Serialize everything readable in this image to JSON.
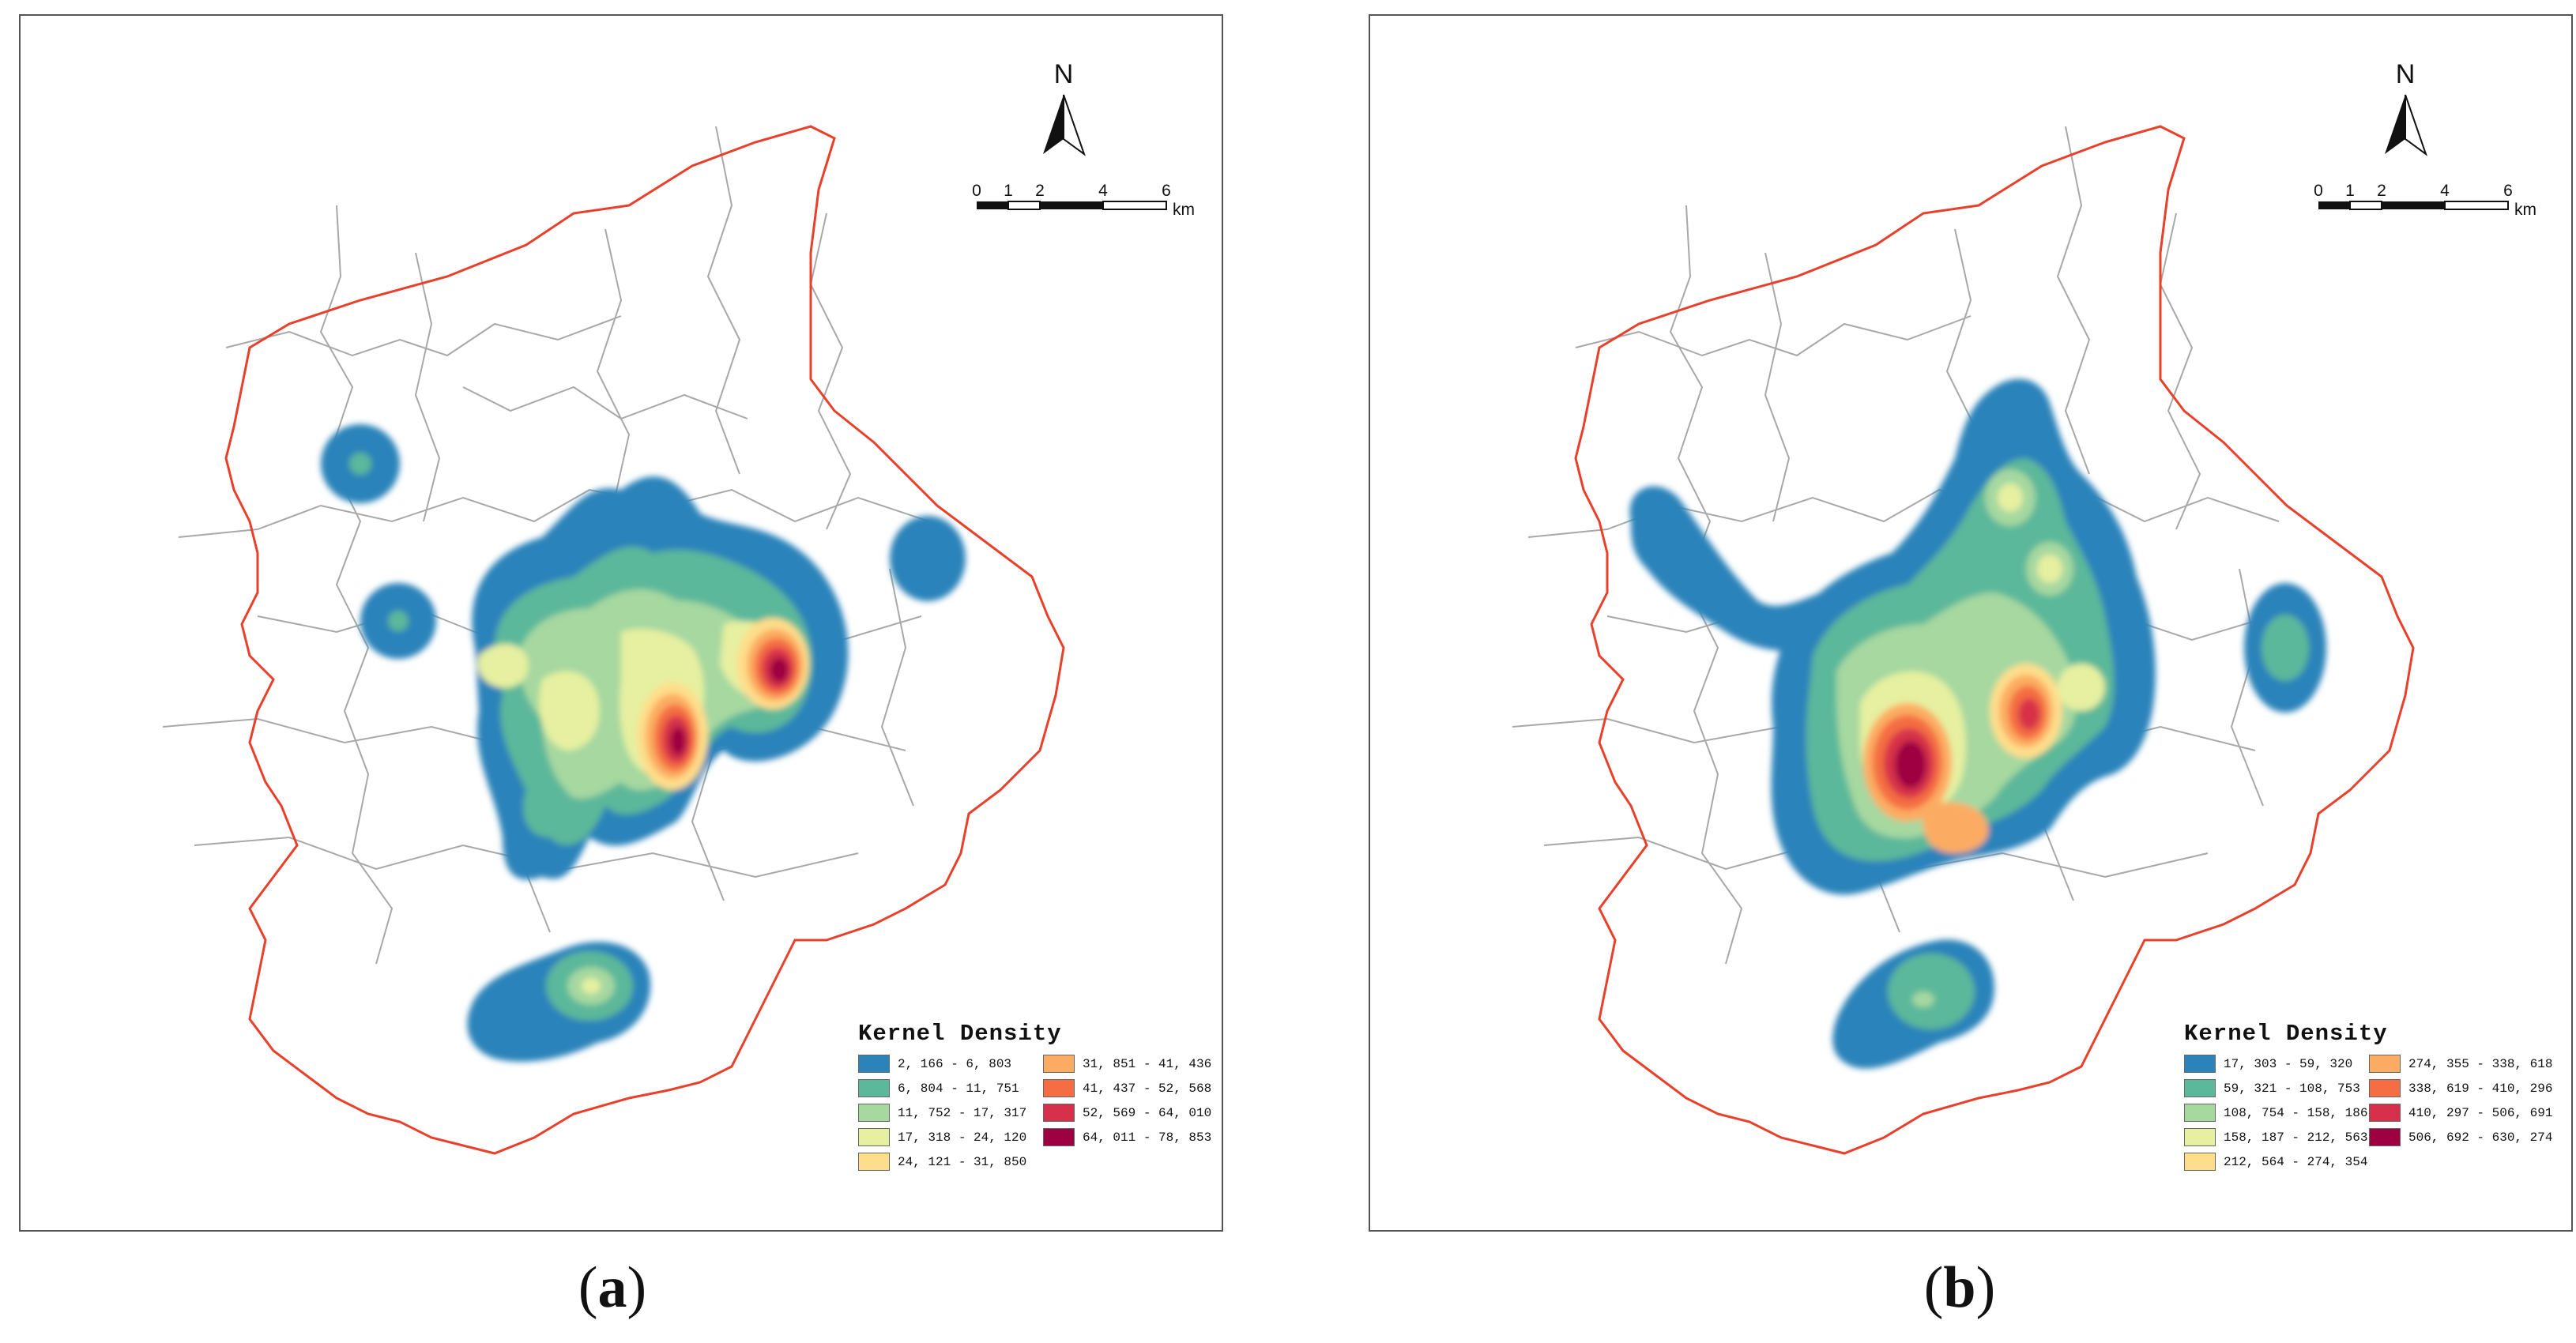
{
  "panels": [
    {
      "id": "a",
      "caption": "a",
      "north_label": "N",
      "scale_labels": [
        "0",
        "1",
        "2",
        "4",
        "6"
      ],
      "scale_unit": "km",
      "legend": {
        "title": "Kernel Density",
        "classes": [
          {
            "range": "2, 166 - 6, 803",
            "color": "#2b83ba"
          },
          {
            "range": "6, 804 - 11, 751",
            "color": "#5bb89a"
          },
          {
            "range": "11, 752 - 17, 317",
            "color": "#a6d8a0"
          },
          {
            "range": "17, 318 - 24, 120",
            "color": "#e6f0a0"
          },
          {
            "range": "24, 121 - 31, 850",
            "color": "#fede8b"
          },
          {
            "range": "31, 851 - 41, 436",
            "color": "#fcac62"
          },
          {
            "range": "41, 437 - 52, 568",
            "color": "#f46d43"
          },
          {
            "range": "52, 569 - 64, 010",
            "color": "#d7304a"
          },
          {
            "range": "64, 011 - 78, 853",
            "color": "#9e0142"
          }
        ]
      }
    },
    {
      "id": "b",
      "caption": "b",
      "north_label": "N",
      "scale_labels": [
        "0",
        "1",
        "2",
        "4",
        "6"
      ],
      "scale_unit": "km",
      "legend": {
        "title": "Kernel Density",
        "classes": [
          {
            "range": "17, 303 - 59, 320",
            "color": "#2b83ba"
          },
          {
            "range": "59, 321 - 108, 753",
            "color": "#5bb89a"
          },
          {
            "range": "108, 754 - 158, 186",
            "color": "#a6d8a0"
          },
          {
            "range": "158, 187 - 212, 563",
            "color": "#e6f0a0"
          },
          {
            "range": "212, 564 - 274, 354",
            "color": "#fede8b"
          },
          {
            "range": "274, 355 - 338, 618",
            "color": "#fcac62"
          },
          {
            "range": "338, 619 - 410, 296",
            "color": "#f46d43"
          },
          {
            "range": "410, 297 - 506, 691",
            "color": "#d7304a"
          },
          {
            "range": "506, 692 - 630, 274",
            "color": "#9e0142"
          }
        ]
      }
    }
  ],
  "colors": {
    "boundary": "#e8402a",
    "districts": "#a8a8a8"
  }
}
